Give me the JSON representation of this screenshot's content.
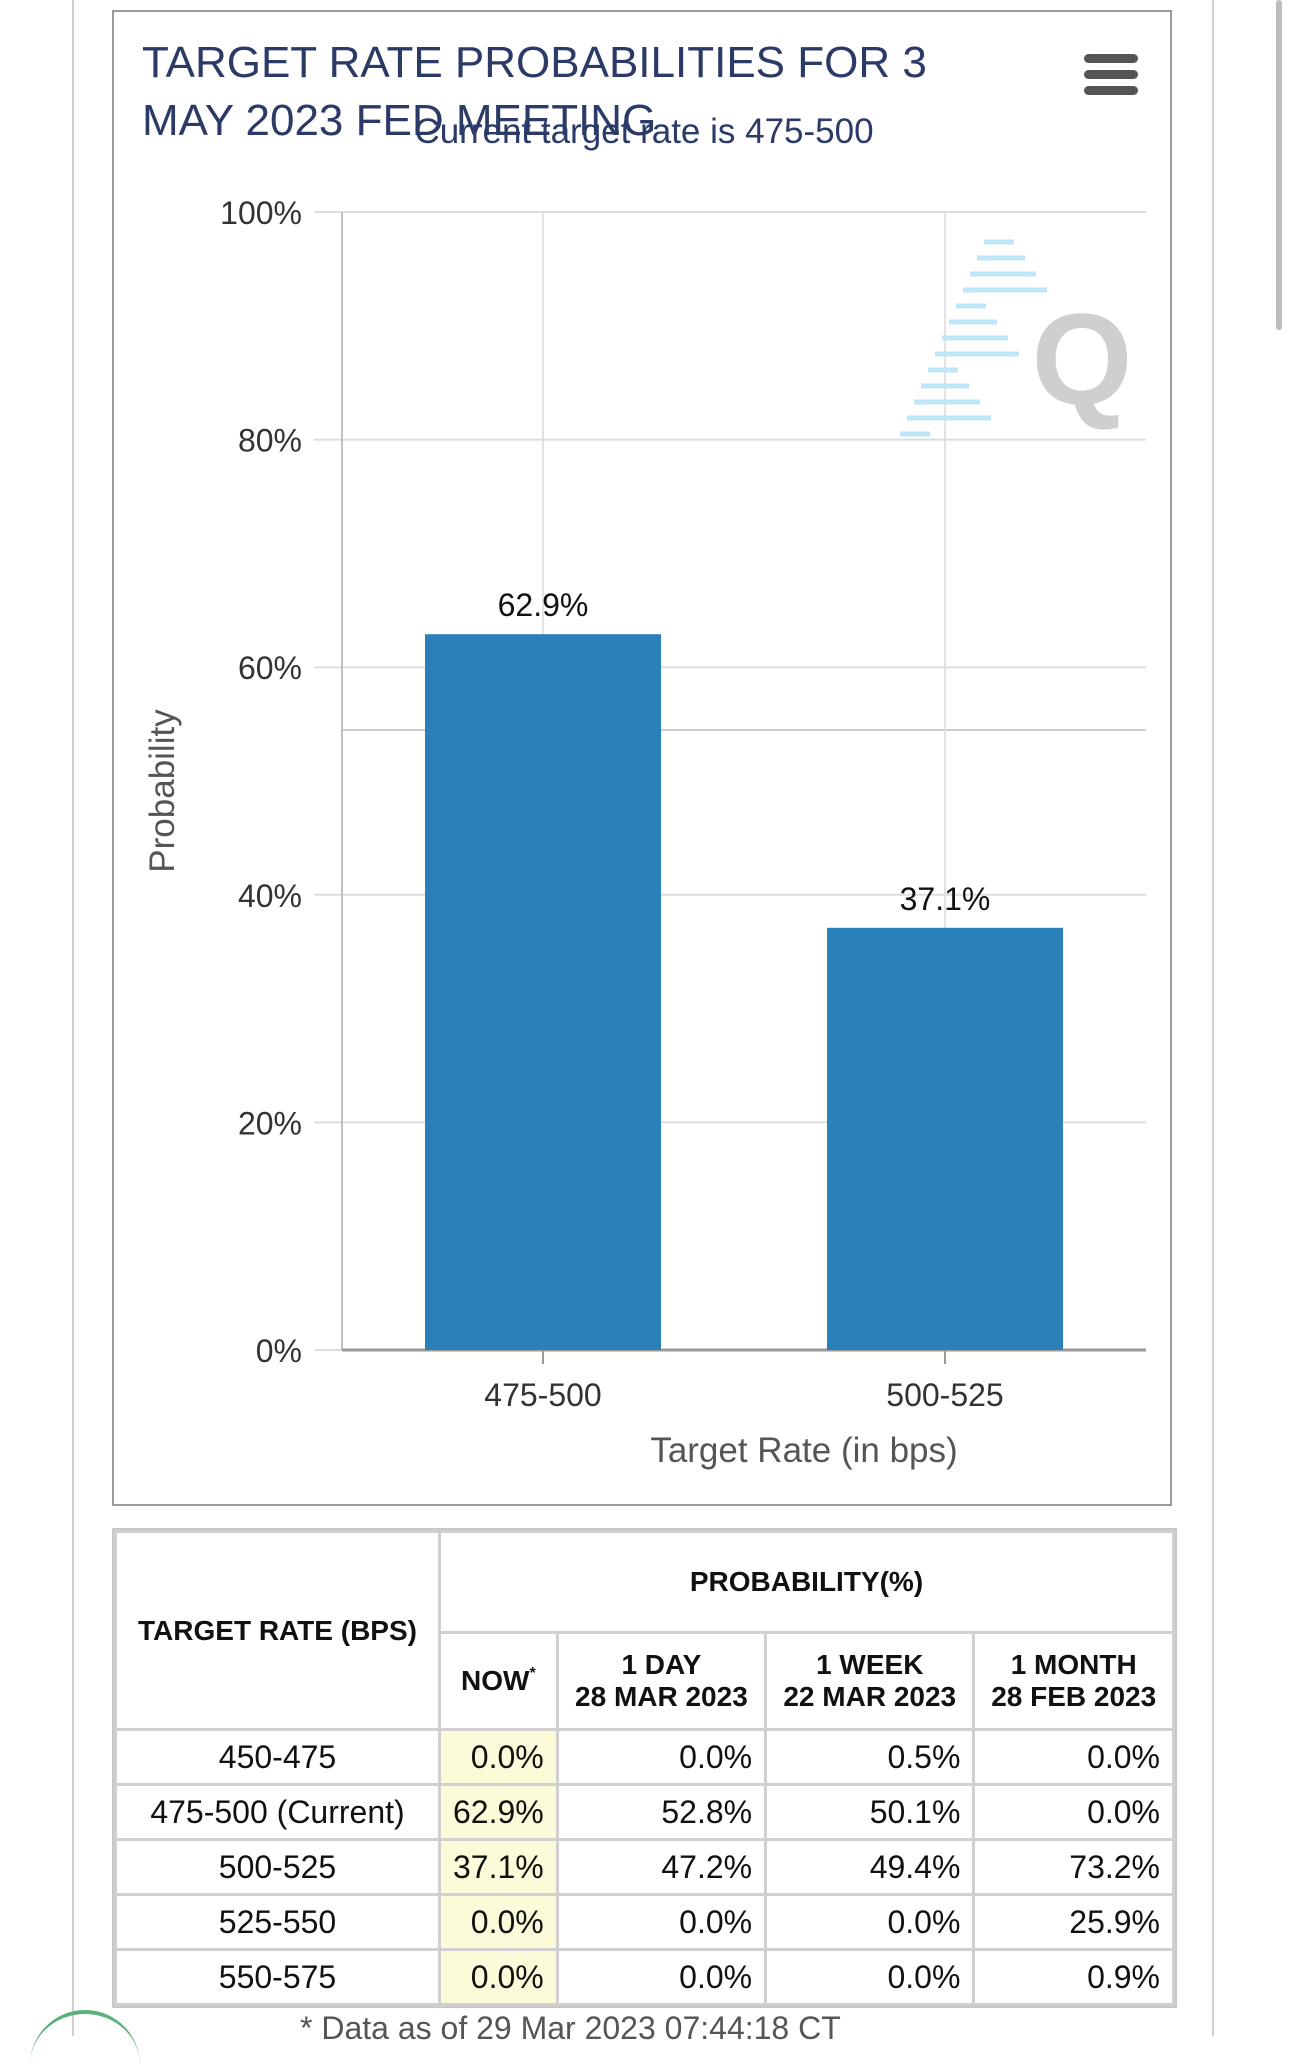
{
  "menu_icon": "hamburger-menu-icon",
  "chart_data": {
    "type": "bar",
    "title": "TARGET RATE PROBABILITIES FOR 3 MAY 2023 FED MEETING",
    "subtitle": "Current target rate is 475-500",
    "xlabel": "Target Rate (in bps)",
    "ylabel": "Probability",
    "categories": [
      "475-500",
      "500-525"
    ],
    "values": [
      62.9,
      37.1
    ],
    "data_labels": [
      "62.9%",
      "37.1%"
    ],
    "ylim": [
      0,
      100
    ],
    "yticks": [
      "0%",
      "20%",
      "40%",
      "60%",
      "80%",
      "100%"
    ],
    "ytick_values": [
      0,
      20,
      40,
      60,
      80,
      100
    ],
    "grid": true,
    "bar_color": "#2a80b9",
    "watermark": "Q"
  },
  "table": {
    "col_rate": "TARGET RATE (BPS)",
    "col_prob": "PROBABILITY(%)",
    "now_label": "NOW",
    "now_mark": "*",
    "periods": [
      {
        "label": "1 DAY",
        "date": "28 MAR 2023"
      },
      {
        "label": "1 WEEK",
        "date": "22 MAR 2023"
      },
      {
        "label": "1 MONTH",
        "date": "28 FEB 2023"
      }
    ],
    "rows": [
      {
        "rate": "450-475",
        "now": "0.0%",
        "day": "0.0%",
        "week": "0.5%",
        "month": "0.0%"
      },
      {
        "rate": "475-500 (Current)",
        "now": "62.9%",
        "day": "52.8%",
        "week": "50.1%",
        "month": "0.0%"
      },
      {
        "rate": "500-525",
        "now": "37.1%",
        "day": "47.2%",
        "week": "49.4%",
        "month": "73.2%"
      },
      {
        "rate": "525-550",
        "now": "0.0%",
        "day": "0.0%",
        "week": "0.0%",
        "month": "25.9%"
      },
      {
        "rate": "550-575",
        "now": "0.0%",
        "day": "0.0%",
        "week": "0.0%",
        "month": "0.9%"
      }
    ]
  },
  "footnote": "* Data as of 29 Mar 2023 07:44:18 CT"
}
